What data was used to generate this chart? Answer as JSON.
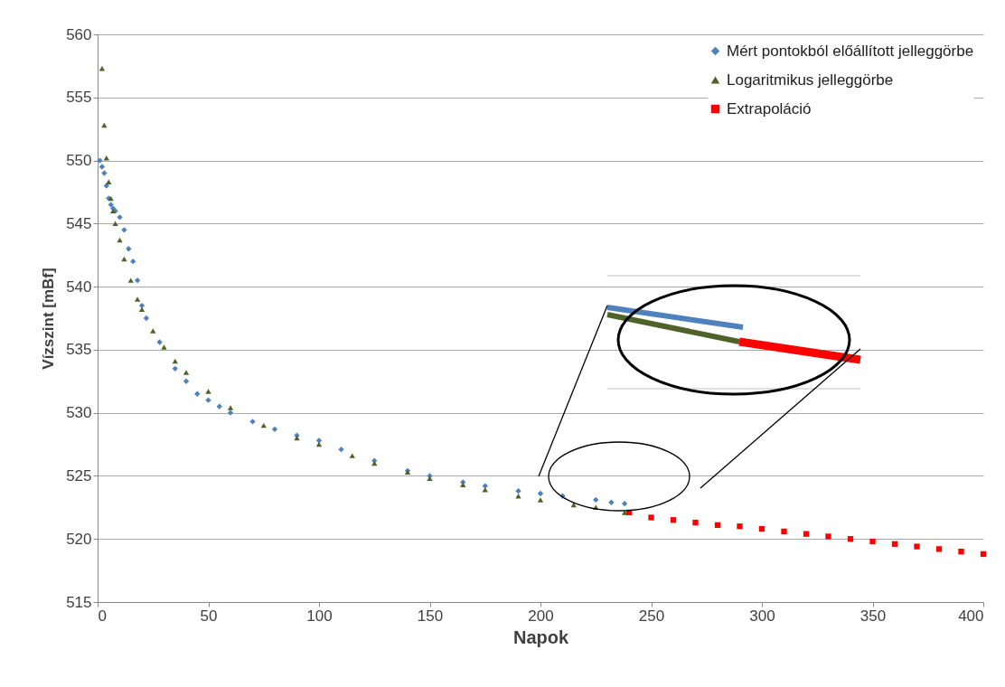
{
  "chart_data": {
    "type": "scatter",
    "xlabel": "Napok",
    "ylabel": "Vízszint [mBf]",
    "xlim": [
      0,
      400
    ],
    "xticks": [
      0,
      50,
      100,
      150,
      200,
      250,
      300,
      350,
      400
    ],
    "ylim": [
      515,
      560
    ],
    "yticks": [
      515,
      520,
      525,
      530,
      535,
      540,
      545,
      550,
      555,
      560
    ],
    "grid": "y",
    "legend": "top right",
    "series": [
      {
        "name": "Mért pontokból előállított jelleggörbe",
        "color": "#4f81bd",
        "marker": "diamond",
        "x": [
          1,
          2,
          3,
          4,
          5,
          6,
          7,
          8,
          10,
          12,
          14,
          16,
          18,
          20,
          22,
          28,
          35,
          40,
          45,
          50,
          55,
          60,
          70,
          80,
          90,
          100,
          110,
          125,
          140,
          150,
          165,
          175,
          190,
          200,
          210,
          225,
          232,
          238
        ],
        "values": [
          550,
          549.5,
          549,
          548,
          547,
          546.5,
          546.2,
          546,
          545.5,
          544.5,
          543,
          542,
          540.5,
          538.5,
          537.5,
          535.6,
          533.5,
          532.5,
          531.5,
          531,
          530.5,
          530,
          529.3,
          528.7,
          528.2,
          527.8,
          527.1,
          526.2,
          525.4,
          525,
          524.5,
          524.2,
          523.8,
          523.6,
          523.4,
          523.1,
          522.9,
          522.8
        ]
      },
      {
        "name": "Logaritmikus jelleggörbe",
        "color": "#4f6228",
        "marker": "triangle",
        "x": [
          2,
          3,
          4,
          5,
          6,
          7,
          8,
          10,
          12,
          15,
          18,
          20,
          25,
          30,
          35,
          40,
          50,
          60,
          75,
          90,
          100,
          115,
          125,
          140,
          150,
          165,
          175,
          190,
          200,
          215,
          225,
          238
        ],
        "values": [
          557.3,
          552.8,
          550.2,
          548.3,
          547,
          546,
          545,
          543.7,
          542.2,
          540.5,
          539,
          538.2,
          536.5,
          535.2,
          534.1,
          533.2,
          531.7,
          530.4,
          529,
          528,
          527.5,
          526.6,
          526,
          525.3,
          524.8,
          524.3,
          523.9,
          523.4,
          523.1,
          522.7,
          522.5,
          522.1
        ]
      },
      {
        "name": "Extrapoláció",
        "color": "#ff0000",
        "marker": "square",
        "x": [
          240,
          250,
          260,
          270,
          280,
          290,
          300,
          310,
          320,
          330,
          340,
          350,
          360,
          370,
          380,
          390,
          400
        ],
        "values": [
          522.1,
          521.7,
          521.5,
          521.3,
          521.1,
          521,
          520.8,
          520.6,
          520.4,
          520.2,
          520,
          519.8,
          519.6,
          519.4,
          519.2,
          519,
          518.8
        ]
      }
    ]
  }
}
